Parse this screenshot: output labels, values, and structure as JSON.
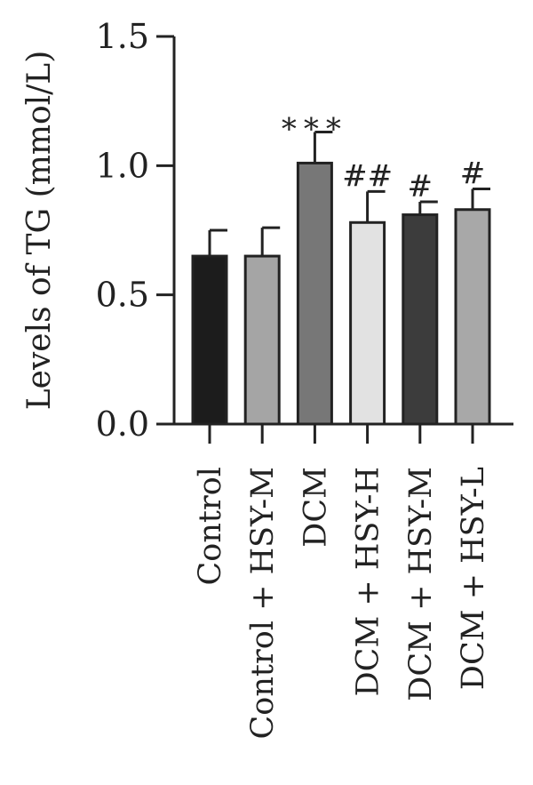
{
  "chart_data": {
    "type": "bar",
    "title": "",
    "xlabel": "",
    "ylabel": "Levels of TG (mmol/L)",
    "ylim": [
      0,
      1.5
    ],
    "yticks": [
      0.0,
      0.5,
      1.0,
      1.5
    ],
    "ytick_labels": [
      "0.0",
      "0.5",
      "1.0",
      "1.5"
    ],
    "categories": [
      "Control",
      "Control + HSY-M",
      "DCM",
      "DCM + HSY-H",
      "DCM + HSY-M",
      "DCM + HSY-L"
    ],
    "values": [
      0.65,
      0.65,
      1.01,
      0.78,
      0.81,
      0.83
    ],
    "errors": [
      0.1,
      0.11,
      0.12,
      0.12,
      0.05,
      0.08
    ],
    "annotations": [
      "",
      "",
      "***",
      "##",
      "#",
      "#"
    ],
    "colors": [
      "#1c1c1c",
      "#a5a5a5",
      "#777777",
      "#e2e2e2",
      "#3c3c3c",
      "#a8a8a8"
    ],
    "grid": false,
    "legend": "none"
  }
}
